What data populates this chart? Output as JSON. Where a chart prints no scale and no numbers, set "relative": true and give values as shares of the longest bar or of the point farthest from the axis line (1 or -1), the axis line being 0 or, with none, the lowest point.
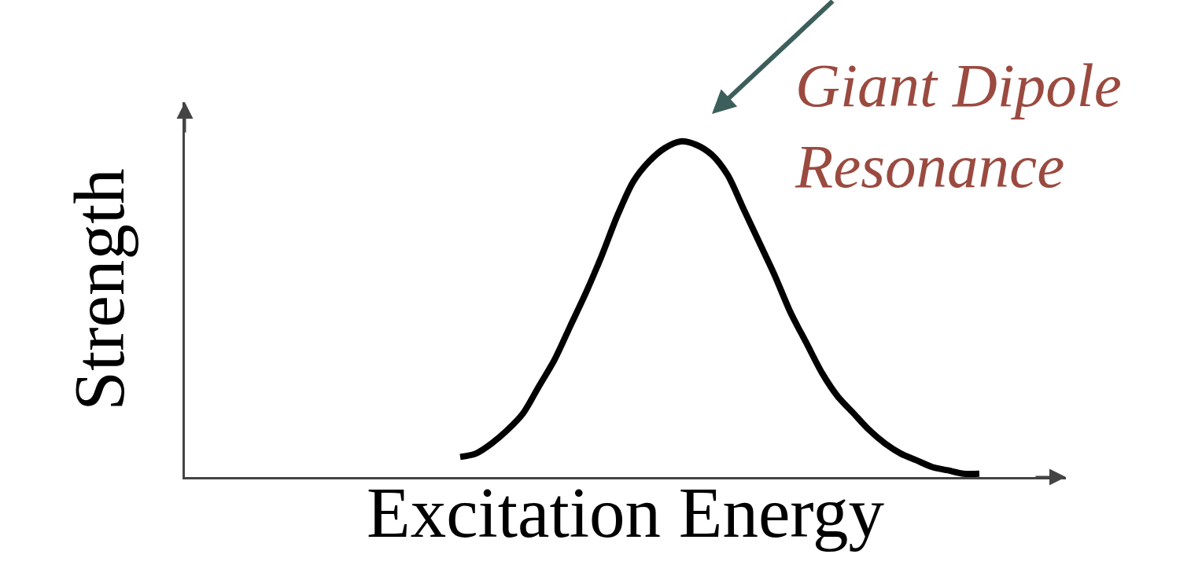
{
  "chart_data": {
    "type": "line",
    "xlabel": "Excitation Energy",
    "ylabel": "Strength",
    "relative": true,
    "categories": [
      null,
      null,
      null,
      null,
      null,
      null,
      null,
      null,
      null,
      null,
      null,
      null,
      null,
      null,
      null,
      null,
      null,
      null,
      null,
      null,
      null,
      null,
      null,
      null,
      null,
      null,
      null,
      null,
      null,
      null,
      null,
      null,
      null,
      null,
      null,
      null,
      null,
      null,
      null,
      null,
      null,
      null,
      null,
      null,
      null,
      null,
      null,
      null,
      null,
      null,
      null,
      null,
      null,
      null,
      null,
      null
    ],
    "series": [
      {
        "color": "#000000",
        "values": [
          null,
          null,
          null,
          null,
          null,
          null,
          null,
          null,
          null,
          null,
          null,
          null,
          null,
          null,
          null,
          null,
          null,
          0.06,
          0.07,
          0.1,
          0.14,
          0.19,
          0.27,
          0.35,
          0.45,
          0.55,
          0.66,
          0.78,
          0.88,
          0.94,
          0.98,
          1.0,
          0.99,
          0.96,
          0.9,
          0.8,
          0.7,
          0.6,
          0.49,
          0.4,
          0.31,
          0.24,
          0.19,
          0.14,
          0.1,
          0.07,
          0.05,
          0.03,
          0.02,
          0.01,
          0.01,
          null,
          null,
          null,
          null,
          null
        ]
      }
    ],
    "annotations": [
      "Giant Dipole\nResonance"
    ]
  }
}
